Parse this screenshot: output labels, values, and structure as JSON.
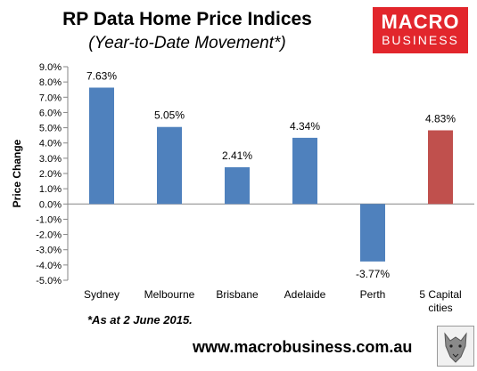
{
  "header": {
    "title": "RP Data Home Price Indices",
    "subtitle": "(Year-to-Date Movement*)"
  },
  "logo": {
    "line1": "MACRO",
    "line2": "BUSINESS",
    "color": "#e2262c"
  },
  "footnote": "*As at 2 June 2015.",
  "website": "www.macrobusiness.com.au",
  "chart_data": {
    "type": "bar",
    "ylabel": "Price Change",
    "ylim": [
      -5,
      9
    ],
    "yticks": [
      9,
      8,
      7,
      6,
      5,
      4,
      3,
      2,
      1,
      0,
      -1,
      -2,
      -3,
      -4,
      -5
    ],
    "ytick_labels": [
      "9.0%",
      "8.0%",
      "7.0%",
      "6.0%",
      "5.0%",
      "4.0%",
      "3.0%",
      "2.0%",
      "1.0%",
      "0.0%",
      "-1.0%",
      "-2.0%",
      "-3.0%",
      "-4.0%",
      "-5.0%"
    ],
    "categories": [
      "Sydney",
      "Melbourne",
      "Brisbane",
      "Adelaide",
      "Perth",
      "5 Capital cities"
    ],
    "category_lines": [
      [
        "Sydney"
      ],
      [
        "Melbourne"
      ],
      [
        "Brisbane"
      ],
      [
        "Adelaide"
      ],
      [
        "Perth"
      ],
      [
        "5 Capital",
        "cities"
      ]
    ],
    "values": [
      7.63,
      5.05,
      2.41,
      4.34,
      -3.77,
      4.83
    ],
    "data_labels": [
      "7.63%",
      "5.05%",
      "2.41%",
      "4.34%",
      "-3.77%",
      "4.83%"
    ],
    "colors": [
      "#4f81bd",
      "#4f81bd",
      "#4f81bd",
      "#4f81bd",
      "#4f81bd",
      "#c0504d"
    ],
    "grid": false,
    "legend": "none"
  }
}
